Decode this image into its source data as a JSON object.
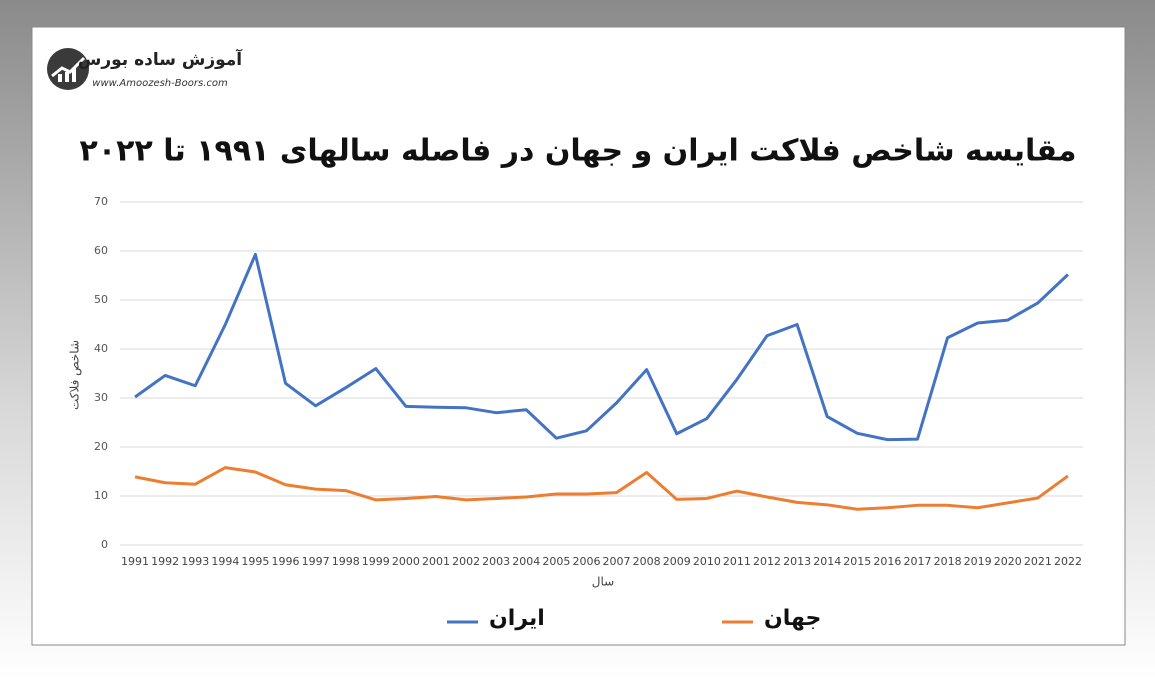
{
  "logo": {
    "name": "آموزش ساده بورس",
    "url": "www.Amoozesh-Boors.com"
  },
  "chart_data": {
    "type": "line",
    "title": "مقایسه شاخص فلاکت ایران و جهان در فاصله سالهای ۱۹۹۱ تا ۲۰۲۲",
    "y_label": "شاخص فلاکت",
    "x_label": "سال",
    "categories": [
      "1991",
      "1992",
      "1993",
      "1994",
      "1995",
      "1996",
      "1997",
      "1998",
      "1999",
      "2000",
      "2001",
      "2002",
      "2003",
      "2004",
      "2005",
      "2006",
      "2007",
      "2008",
      "2009",
      "2010",
      "2011",
      "2012",
      "2013",
      "2014",
      "2015",
      "2016",
      "2017",
      "2018",
      "2019",
      "2020",
      "2021",
      "2022"
    ],
    "series": [
      {
        "name": "ایران",
        "color": "#4472c4",
        "values": [
          30.2,
          34.6,
          32.5,
          45,
          59.3,
          33,
          28.4,
          32.1,
          36,
          28.3,
          28.1,
          28,
          27,
          27.6,
          21.8,
          23.3,
          29,
          35.8,
          22.7,
          25.8,
          33.8,
          42.7,
          45,
          26.2,
          22.8,
          21.5,
          21.6,
          42.3,
          45.3,
          45.9,
          49.4,
          55.2
        ]
      },
      {
        "name": "جهان",
        "color": "#ed7d31",
        "values": [
          13.9,
          12.7,
          12.4,
          15.8,
          14.9,
          12.3,
          11.4,
          11.1,
          9.2,
          9.5,
          9.9,
          9.2,
          9.5,
          9.8,
          10.4,
          10.4,
          10.7,
          14.8,
          9.3,
          9.5,
          11,
          9.8,
          8.7,
          8.2,
          7.3,
          7.6,
          8.1,
          8.1,
          7.6,
          8.6,
          9.6,
          14.1
        ]
      }
    ],
    "ylim": [
      0,
      70
    ],
    "yticks": [
      0,
      10,
      20,
      30,
      40,
      50,
      60,
      70
    ],
    "grid": true
  }
}
